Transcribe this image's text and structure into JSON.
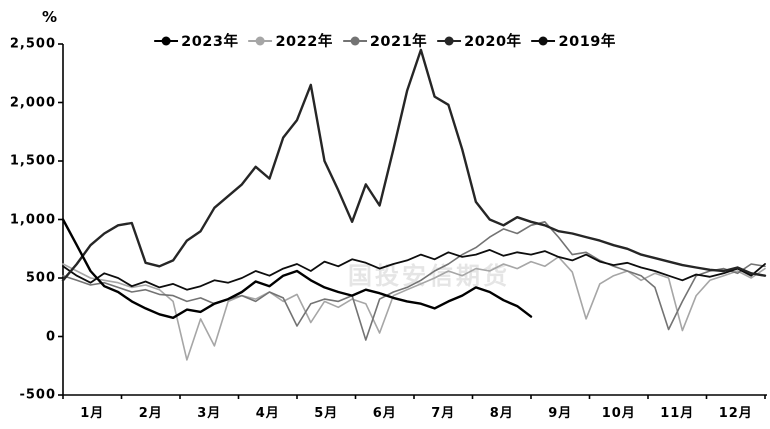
{
  "chart_data": {
    "type": "line",
    "title": "",
    "unit_label": "%",
    "xlabel": "",
    "ylabel": "%",
    "ylim": [
      -500,
      2500
    ],
    "grid": false,
    "legend_position": "top",
    "y_ticks": [
      2500,
      2000,
      1500,
      1000,
      500,
      0,
      -500
    ],
    "y_tick_labels": [
      "2,500",
      "2,000",
      "1,500",
      "1,000",
      "500",
      "0",
      "-500"
    ],
    "x_tick_labels": [
      "1月",
      "2月",
      "3月",
      "4月",
      "5月",
      "6月",
      "7月",
      "8月",
      "9月",
      "10月",
      "11月",
      "12月"
    ],
    "watermark": "国投安信期货",
    "series": [
      {
        "name": "2023年",
        "color": "#000000",
        "width": 2.4,
        "start_month": 0,
        "end_month": 8,
        "values": [
          1000,
          780,
          560,
          430,
          380,
          300,
          240,
          190,
          160,
          230,
          210,
          280,
          320,
          380,
          470,
          430,
          520,
          560,
          480,
          420,
          380,
          350,
          400,
          370,
          330,
          300,
          280,
          240,
          300,
          350,
          420,
          380,
          310,
          260,
          170
        ]
      },
      {
        "name": "2022年",
        "color": "#a6a6a6",
        "width": 1.6,
        "start_month": 0,
        "end_month": 12,
        "values": [
          620,
          560,
          500,
          480,
          460,
          420,
          440,
          400,
          300,
          -200,
          150,
          -80,
          300,
          350,
          320,
          380,
          300,
          360,
          120,
          300,
          250,
          320,
          280,
          30,
          350,
          400,
          450,
          500,
          560,
          520,
          580,
          560,
          620,
          580,
          640,
          600,
          680,
          550,
          150,
          450,
          520,
          560,
          480,
          540,
          500,
          50,
          350,
          480,
          520,
          560,
          500,
          580
        ]
      },
      {
        "name": "2021年",
        "color": "#737373",
        "width": 1.6,
        "start_month": 0,
        "end_month": 12,
        "values": [
          520,
          480,
          440,
          460,
          420,
          380,
          400,
          360,
          350,
          300,
          330,
          280,
          320,
          350,
          300,
          380,
          330,
          90,
          280,
          320,
          300,
          350,
          -30,
          320,
          380,
          420,
          480,
          560,
          620,
          700,
          760,
          850,
          920,
          880,
          950,
          980,
          850,
          700,
          720,
          650,
          600,
          560,
          520,
          420,
          60,
          300,
          520,
          560,
          580,
          540,
          620,
          600
        ]
      },
      {
        "name": "2020年",
        "color": "#262626",
        "width": 2.4,
        "start_month": 0,
        "end_month": 12,
        "values": [
          480,
          620,
          780,
          880,
          950,
          970,
          630,
          600,
          650,
          820,
          900,
          1100,
          1200,
          1300,
          1450,
          1350,
          1700,
          1850,
          2150,
          1500,
          1250,
          980,
          1300,
          1120,
          1600,
          2100,
          2450,
          2050,
          1980,
          1600,
          1150,
          1000,
          950,
          1020,
          980,
          950,
          900,
          880,
          850,
          820,
          780,
          750,
          700,
          670,
          640,
          610,
          590,
          570,
          560,
          590,
          540,
          520
        ]
      },
      {
        "name": "2019年",
        "color": "#0d0d0d",
        "width": 1.8,
        "start_month": 0,
        "end_month": 12,
        "values": [
          600,
          520,
          460,
          540,
          500,
          430,
          470,
          420,
          450,
          400,
          430,
          480,
          460,
          500,
          560,
          520,
          580,
          620,
          560,
          640,
          600,
          660,
          630,
          580,
          620,
          650,
          700,
          660,
          720,
          680,
          700,
          740,
          690,
          720,
          700,
          730,
          680,
          650,
          700,
          640,
          610,
          630,
          590,
          560,
          520,
          480,
          530,
          510,
          540,
          580,
          520,
          620
        ]
      }
    ]
  }
}
